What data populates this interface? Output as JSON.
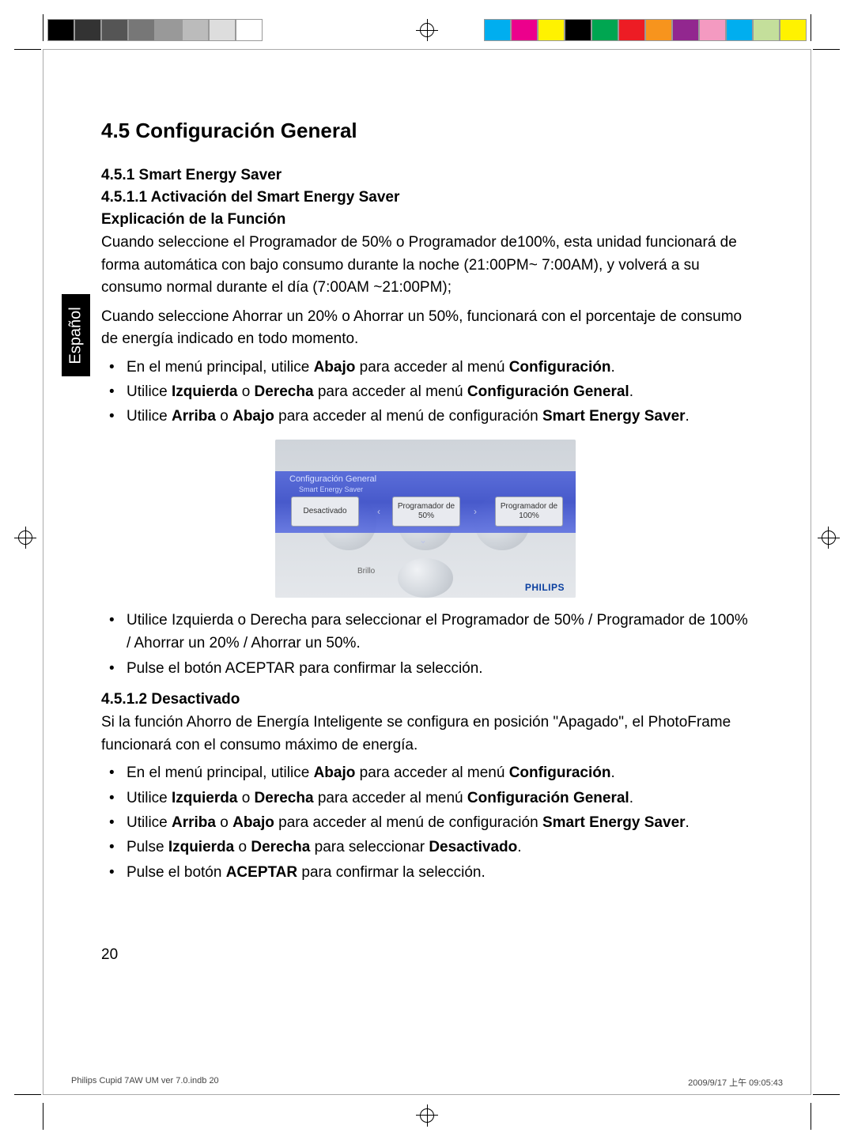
{
  "colorbar": {
    "left": [
      "#000000",
      "#333333",
      "#555555",
      "#777777",
      "#999999",
      "#bbbbbb",
      "#dddddd",
      "#ffffff"
    ],
    "right": [
      "#00aeef",
      "#ec008c",
      "#fff200",
      "#000000",
      "#00a651",
      "#ed1c24",
      "#f7941d",
      "#92278f",
      "#f49ac1",
      "#00aeef",
      "#c4df9b",
      "#fff200"
    ]
  },
  "lang_tab": "Español",
  "section_title": "4.5 Configuración General",
  "h_451": "4.5.1 Smart Energy Saver",
  "h_4511": "4.5.1.1 Activación del Smart Energy Saver",
  "h_expl": "Explicación de la Función",
  "p1": "Cuando seleccione el Programador de 50% o Programador de100%, esta unidad funcionará de forma automática con bajo consumo durante la noche (21:00PM~ 7:00AM), y volverá a su consumo normal durante el día (7:00AM ~21:00PM);",
  "p2": "Cuando seleccione Ahorrar un 20% o Ahorrar un 50%, funcionará con el porcentaje de consumo de energía indicado en todo momento.",
  "list1": {
    "i1_a": "En el menú principal, utilice ",
    "i1_b": "Abajo",
    "i1_c": " para acceder al menú ",
    "i1_d": "Configuración",
    "i1_e": ".",
    "i2_a": "Utilice ",
    "i2_b": "Izquierda",
    "i2_c": " o ",
    "i2_d": "Derecha",
    "i2_e": " para acceder al menú ",
    "i2_f": "Configuración General",
    "i2_g": ".",
    "i3_a": "Utilice ",
    "i3_b": "Arriba",
    "i3_c": " o ",
    "i3_d": "Abajo",
    "i3_e": " para acceder al menú de configuración ",
    "i3_f": "Smart Energy Saver",
    "i3_g": "."
  },
  "device": {
    "hdr_title": "Configuración General",
    "hdr_sub": "Smart Energy Saver",
    "opt1": "Desactivado",
    "opt2": "Programador de 50%",
    "opt3": "Programador de 100%",
    "brillo": "Brillo",
    "brand": "PHILIPS",
    "bg_gradient": [
      "#cfd4da",
      "#d8dce1",
      "#e4e7eb"
    ],
    "bar_gradient": [
      "#4a5fd8",
      "#3448c8",
      "#5a6de0"
    ]
  },
  "list2": {
    "i1": "Utilice Izquierda o Derecha para seleccionar el Programador de 50% / Programador de 100% / Ahorrar un 20% / Ahorrar un 50%.",
    "i2": "Pulse el botón ACEPTAR para confirmar la selección."
  },
  "h_4512": "4.5.1.2 Desactivado",
  "p3": "Si la función Ahorro de Energía Inteligente se configura en posición \"Apagado\", el PhotoFrame funcionará con el consumo máximo de energía.",
  "list3": {
    "i1_a": "En el menú principal, utilice ",
    "i1_b": "Abajo",
    "i1_c": " para acceder al menú ",
    "i1_d": "Configuración",
    "i1_e": ".",
    "i2_a": "Utilice ",
    "i2_b": "Izquierda",
    "i2_c": " o ",
    "i2_d": "Derecha",
    "i2_e": " para acceder al menú ",
    "i2_f": "Configuración General",
    "i2_g": ".",
    "i3_a": "Utilice ",
    "i3_b": "Arriba",
    "i3_c": " o ",
    "i3_d": "Abajo",
    "i3_e": " para acceder al menú de configuración ",
    "i3_f": "Smart Energy Saver",
    "i3_g": ".",
    "i4_a": "Pulse ",
    "i4_b": "Izquierda",
    "i4_c": " o ",
    "i4_d": "Derecha",
    "i4_e": " para seleccionar ",
    "i4_f": "Desactivado",
    "i4_g": ".",
    "i5_a": "Pulse el botón ",
    "i5_b": "ACEPTAR",
    "i5_c": " para confirmar la selección."
  },
  "page_number": "20",
  "footer_left": "Philips Cupid 7AW UM ver 7.0.indb   20",
  "footer_right": "2009/9/17   上午 09:05:43"
}
